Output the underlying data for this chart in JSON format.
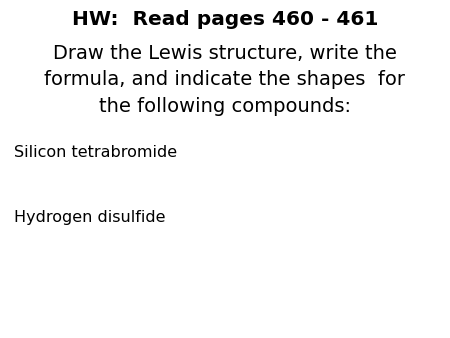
{
  "background_color": "#ffffff",
  "title_line1": "HW:  Read pages 460 - 461",
  "title_line2": "Draw the Lewis structure, write the\nformula, and indicate the shapes  for\nthe following compounds:",
  "item1": "Silicon tetrabromide",
  "item2": "Hydrogen disulfide",
  "title_fontsize": 14.5,
  "body_fontsize": 11.5,
  "text_color": "#000000"
}
